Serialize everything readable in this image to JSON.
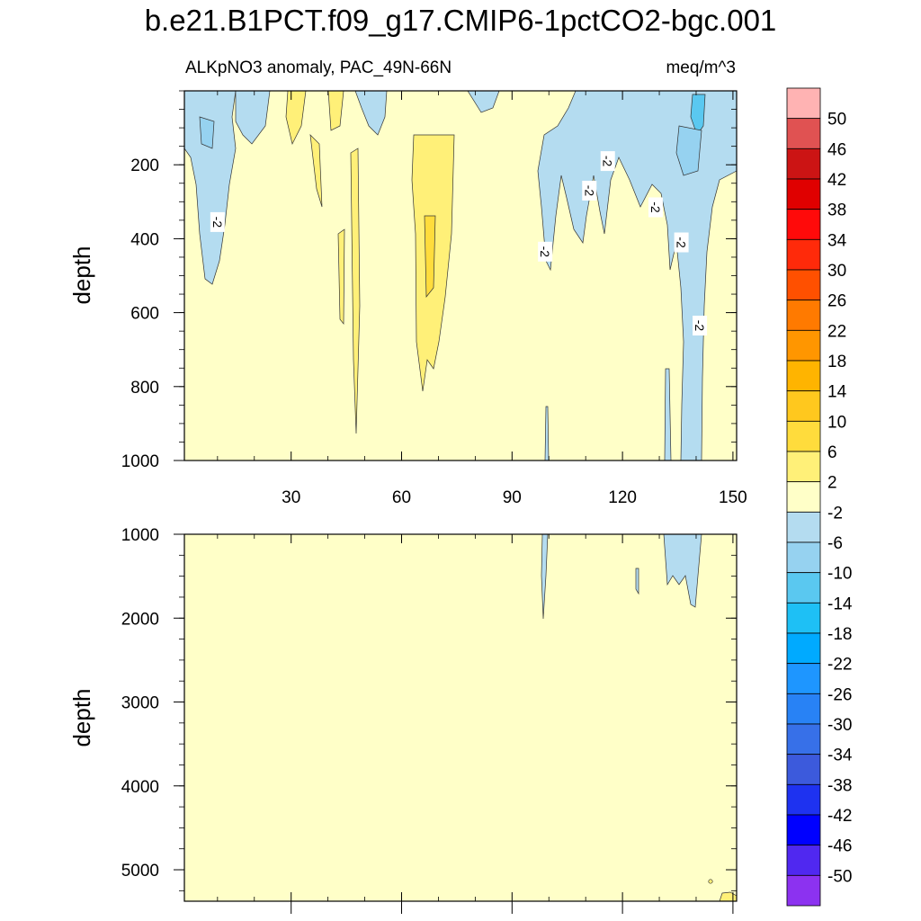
{
  "chart_data": {
    "type": "contour",
    "title": "b.e21.B1PCT.f09_g17.CMIP6-1pctCO2-bgc.001",
    "subtitle_left": "ALKpNO3 anomaly, PAC_49N-66N",
    "subtitle_right": "meq/m^3",
    "x_ticks": [
      30,
      60,
      90,
      120,
      150
    ],
    "x_tick_labels": [
      "30",
      "60",
      "90",
      "120",
      "150"
    ],
    "xlim": [
      1,
      151
    ],
    "panels": [
      {
        "id": "upper",
        "ylabel": "depth",
        "ylim": [
          0,
          1000
        ],
        "inverted": true,
        "y_ticks": [
          200,
          400,
          600,
          800,
          1000
        ],
        "y_tick_labels": [
          "200",
          "400",
          "600",
          "800",
          "1000"
        ],
        "show_x_labels": true
      },
      {
        "id": "lower",
        "ylabel": "depth",
        "ylim": [
          1000,
          5375
        ],
        "inverted": true,
        "y_ticks": [
          1000,
          2000,
          3000,
          4000,
          5000
        ],
        "y_tick_labels": [
          "1000",
          "2000",
          "3000",
          "4000",
          "5000"
        ],
        "show_x_labels": false
      }
    ],
    "contour_labels": [
      {
        "panel": "upper",
        "x": 10,
        "y": 355,
        "text": "-2"
      },
      {
        "panel": "upper",
        "x": 99,
        "y": 435,
        "text": "-2"
      },
      {
        "panel": "upper",
        "x": 111,
        "y": 270,
        "text": "-2"
      },
      {
        "panel": "upper",
        "x": 116,
        "y": 190,
        "text": "-2"
      },
      {
        "panel": "upper",
        "x": 129,
        "y": 315,
        "text": "-2"
      },
      {
        "panel": "upper",
        "x": 136,
        "y": 410,
        "text": "-2"
      },
      {
        "panel": "upper",
        "x": 141,
        "y": 635,
        "text": "-2"
      }
    ],
    "colorbar": {
      "labels": [
        "50",
        "46",
        "42",
        "38",
        "34",
        "30",
        "26",
        "22",
        "18",
        "14",
        "10",
        "6",
        "2",
        "-2",
        "-6",
        "-10",
        "-14",
        "-18",
        "-22",
        "-26",
        "-30",
        "-34",
        "-38",
        "-42",
        "-46",
        "-50"
      ],
      "colors": [
        "#ffb3b3",
        "#e05252",
        "#cc1414",
        "#e00000",
        "#ff0a0a",
        "#ff2a0a",
        "#ff5000",
        "#ff7a00",
        "#ff9600",
        "#ffb400",
        "#ffc81e",
        "#ffdc3c",
        "#fff078",
        "#ffffc8",
        "#b4dcf0",
        "#96d2f0",
        "#5ac8f0",
        "#1ec0f5",
        "#00aaff",
        "#1e96ff",
        "#2882f5",
        "#3770e8",
        "#3c5adc",
        "#1e32f0",
        "#0000ff",
        "#5028f0",
        "#8c32f0"
      ]
    },
    "fill_colors": {
      "near_zero": "#ffffc8",
      "positive_2_6": "#fff078",
      "positive_6_10": "#ffdc3c",
      "negative_2_6": "#b4dcf0",
      "negative_6_10": "#96d2f0",
      "negative_10_14": "#5ac8f0"
    }
  }
}
